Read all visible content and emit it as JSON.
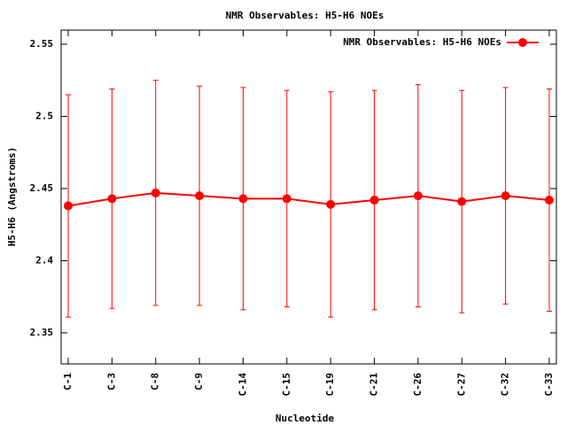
{
  "chart_data": {
    "type": "line",
    "title": "NMR Observables: H5-H6 NOEs",
    "x_label": "Nucleotide",
    "y_label": "H5-H6 (Angstroms)",
    "categories": [
      "C-1",
      "C-3",
      "C-8",
      "C-9",
      "C-14",
      "C-15",
      "C-19",
      "C-21",
      "C-26",
      "C-27",
      "C-32",
      "C-33"
    ],
    "series": [
      {
        "name": "NMR Observables: H5-H6 NOEs",
        "color": "#ff0000",
        "values": [
          2.438,
          2.443,
          2.447,
          2.445,
          2.443,
          2.443,
          2.439,
          2.442,
          2.445,
          2.441,
          2.445,
          2.442
        ],
        "errors": [
          0.077,
          0.076,
          0.078,
          0.076,
          0.077,
          0.075,
          0.078,
          0.076,
          0.077,
          0.077,
          0.075,
          0.077
        ]
      }
    ],
    "ylim": [
      2.3285,
      2.5598
    ],
    "yticks": [
      2.35,
      2.4,
      2.45,
      2.5,
      2.55
    ],
    "grid": false,
    "legend": "top-right"
  }
}
